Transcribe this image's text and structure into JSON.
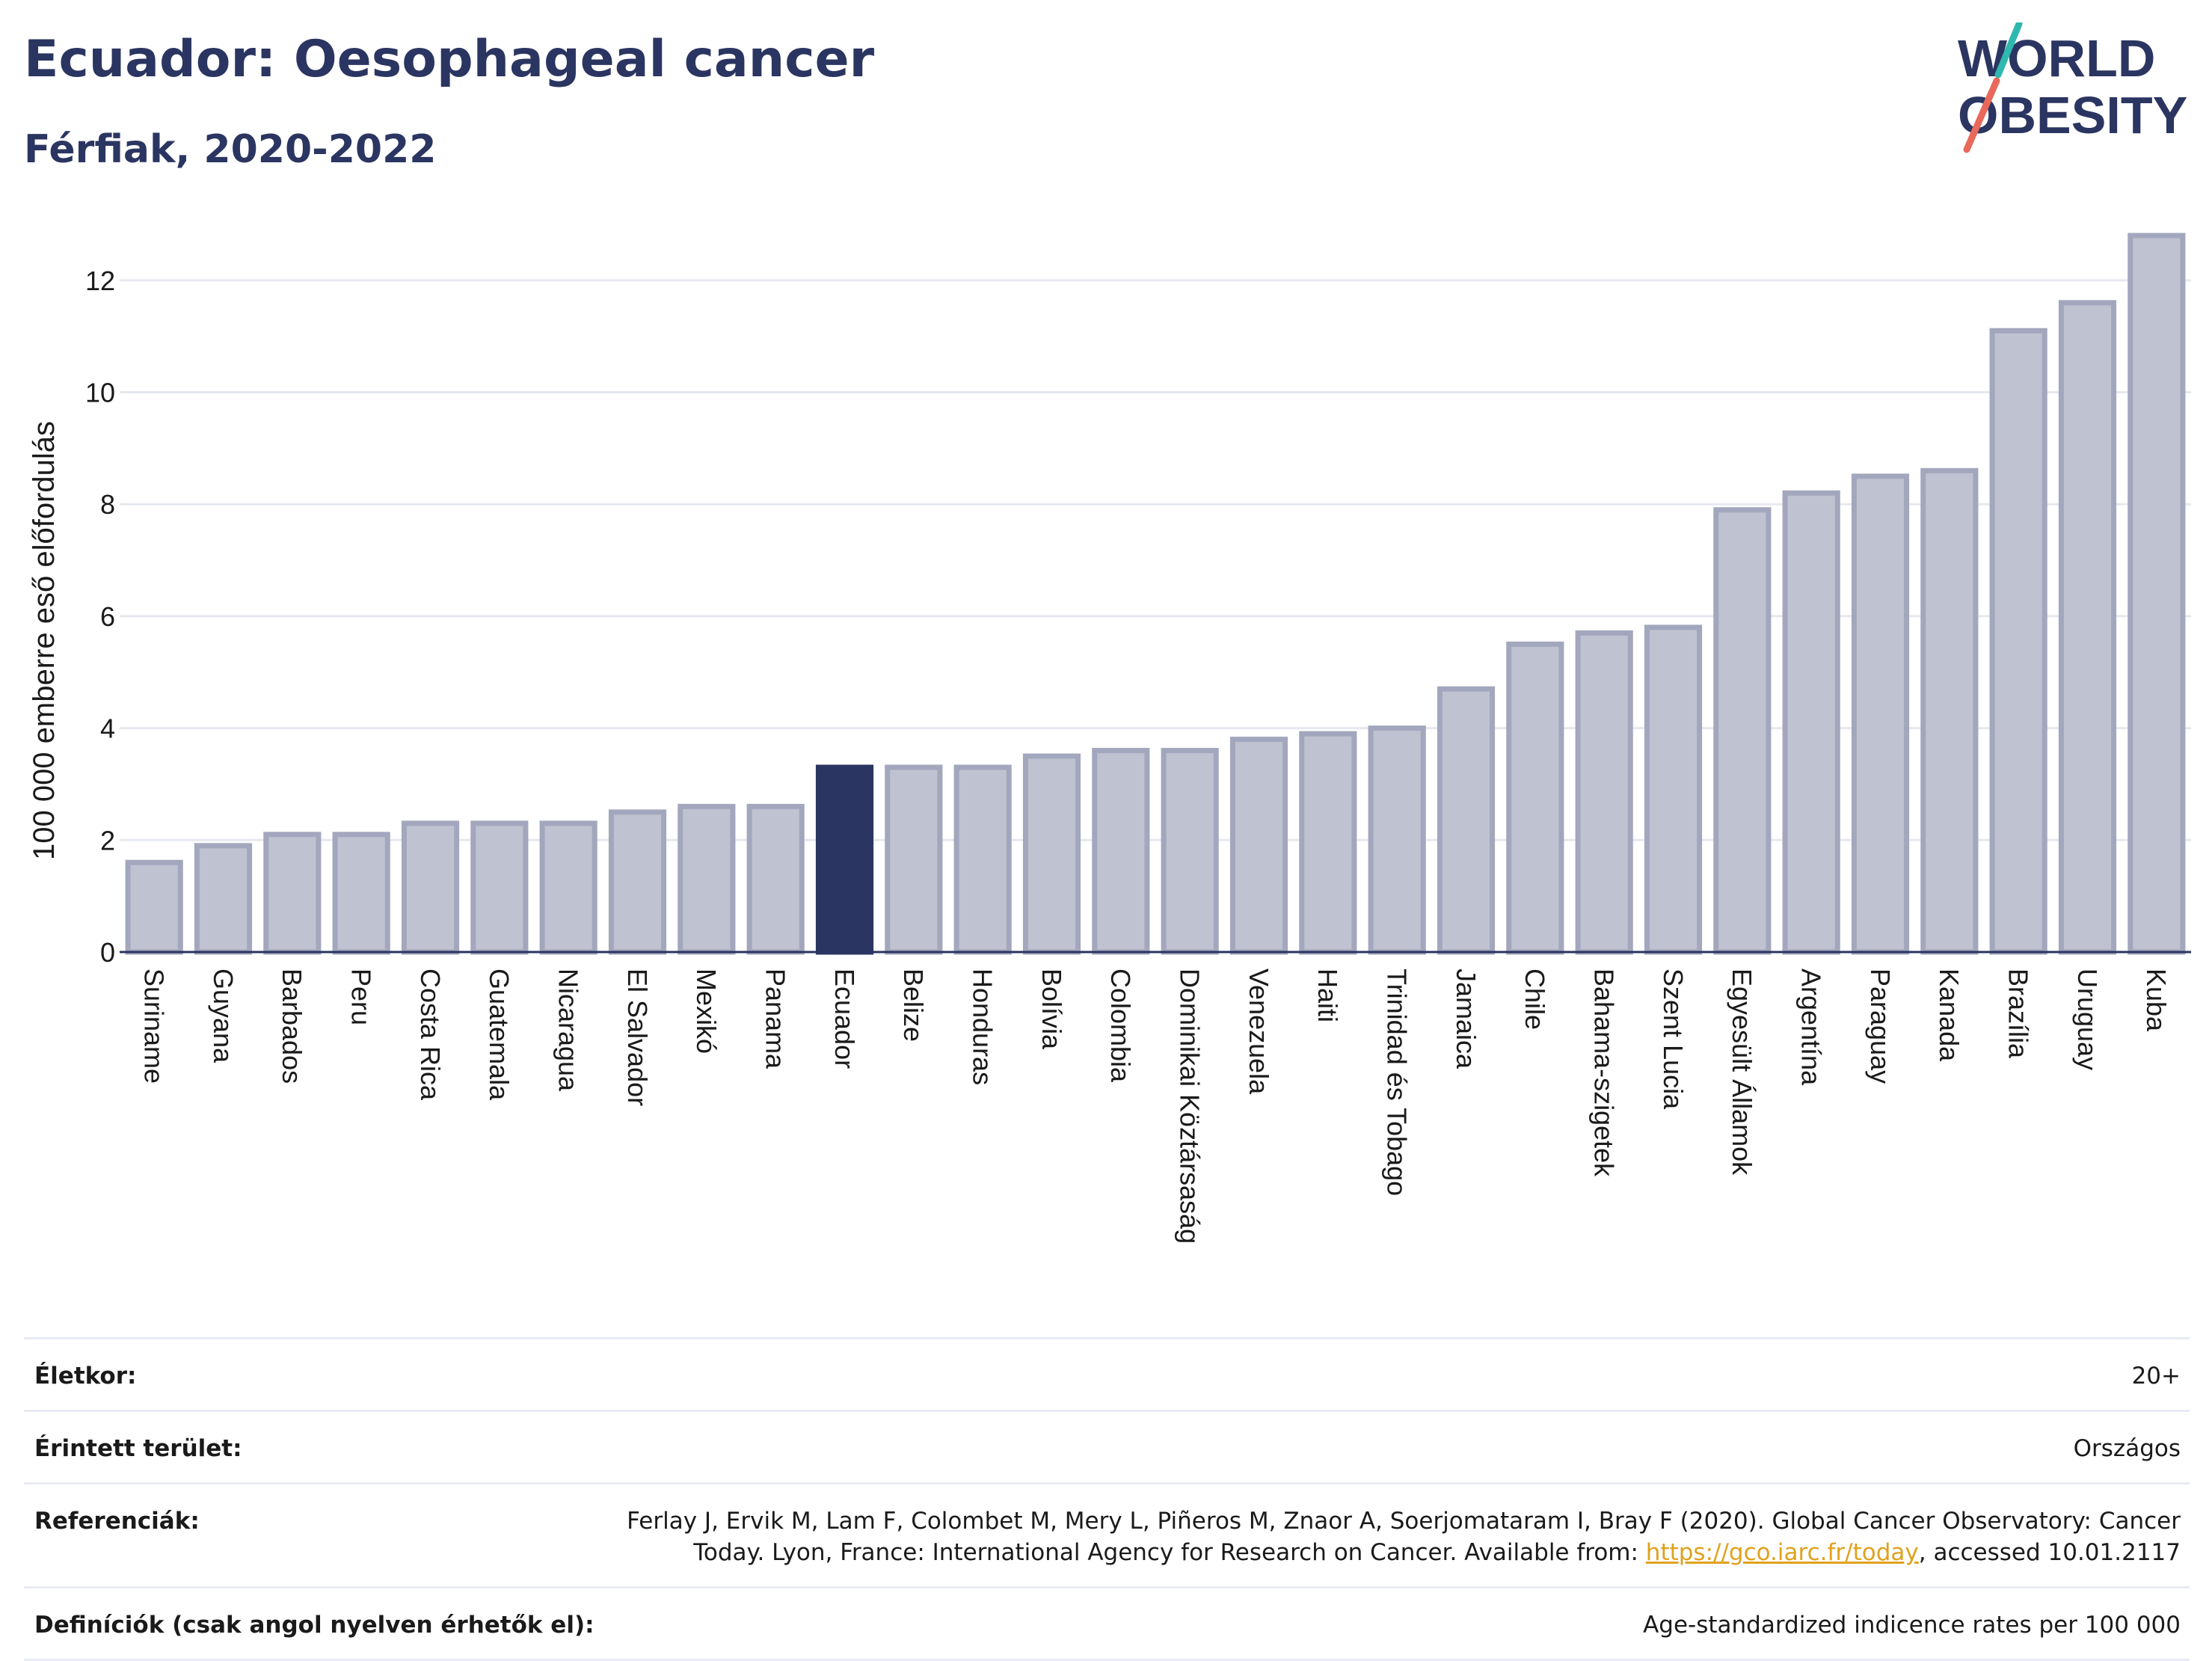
{
  "header": {
    "title": "Ecuador: Oesophageal cancer",
    "subtitle": "Férfiak, 2020-2022"
  },
  "logo": {
    "line1": "WORLD",
    "line2": "OBESITY",
    "colors": {
      "text": "#2b3561",
      "slash_top": "#2fb8b0",
      "slash_bottom": "#e8695a"
    }
  },
  "colors": {
    "bar_fill": "#bfc2d0",
    "bar_stroke": "#a3a7bd",
    "highlight": "#2b3561",
    "grid": "#e6e8ef",
    "axis": "#2b3561"
  },
  "chart_data": {
    "type": "bar",
    "ylabel": "100 000 emberre eső előfordulás",
    "ylim": [
      0,
      13
    ],
    "yticks": [
      0,
      2,
      4,
      6,
      8,
      10,
      12
    ],
    "grid": true,
    "highlight": "Ecuador",
    "categories": [
      "Suriname",
      "Guyana",
      "Barbados",
      "Peru",
      "Costa Rica",
      "Guatemala",
      "Nicaragua",
      "El Salvador",
      "Mexikó",
      "Panama",
      "Ecuador",
      "Belize",
      "Honduras",
      "Bolívia",
      "Colombia",
      "Dominikai Köztársaság",
      "Venezuela",
      "Haiti",
      "Trinidad és Tobago",
      "Jamaica",
      "Chile",
      "Bahama-szigetek",
      "Szent Lucia",
      "Egyesült Államok",
      "Argentína",
      "Paraguay",
      "Kanada",
      "Brazília",
      "Uruguay",
      "Kuba"
    ],
    "values": [
      1.6,
      1.9,
      2.1,
      2.1,
      2.3,
      2.3,
      2.3,
      2.5,
      2.6,
      2.6,
      3.3,
      3.3,
      3.3,
      3.5,
      3.6,
      3.6,
      3.8,
      3.9,
      4.0,
      4.7,
      5.5,
      5.7,
      5.8,
      7.9,
      8.2,
      8.5,
      8.6,
      11.1,
      11.6,
      12.8
    ]
  },
  "info": {
    "age_label": "Életkor:",
    "age_value": "20+",
    "area_label": "Érintett terület:",
    "area_value": "Országos",
    "ref_label": "Referenciák:",
    "ref_text_1": "Ferlay J, Ervik M, Lam F, Colombet M, Mery L, Piñeros M, Znaor A, Soerjomataram I, Bray F (2020). Global Cancer Observatory: Cancer Today. Lyon, France: International Agency for Research on Cancer. Available from: ",
    "ref_link": "https://gco.iarc.fr/today",
    "ref_text_2": ", accessed 10.01.2117",
    "def_label": "Definíciók (csak angol nyelven érhetők el):",
    "def_value": "Age-standardized indicence rates per 100 000"
  }
}
